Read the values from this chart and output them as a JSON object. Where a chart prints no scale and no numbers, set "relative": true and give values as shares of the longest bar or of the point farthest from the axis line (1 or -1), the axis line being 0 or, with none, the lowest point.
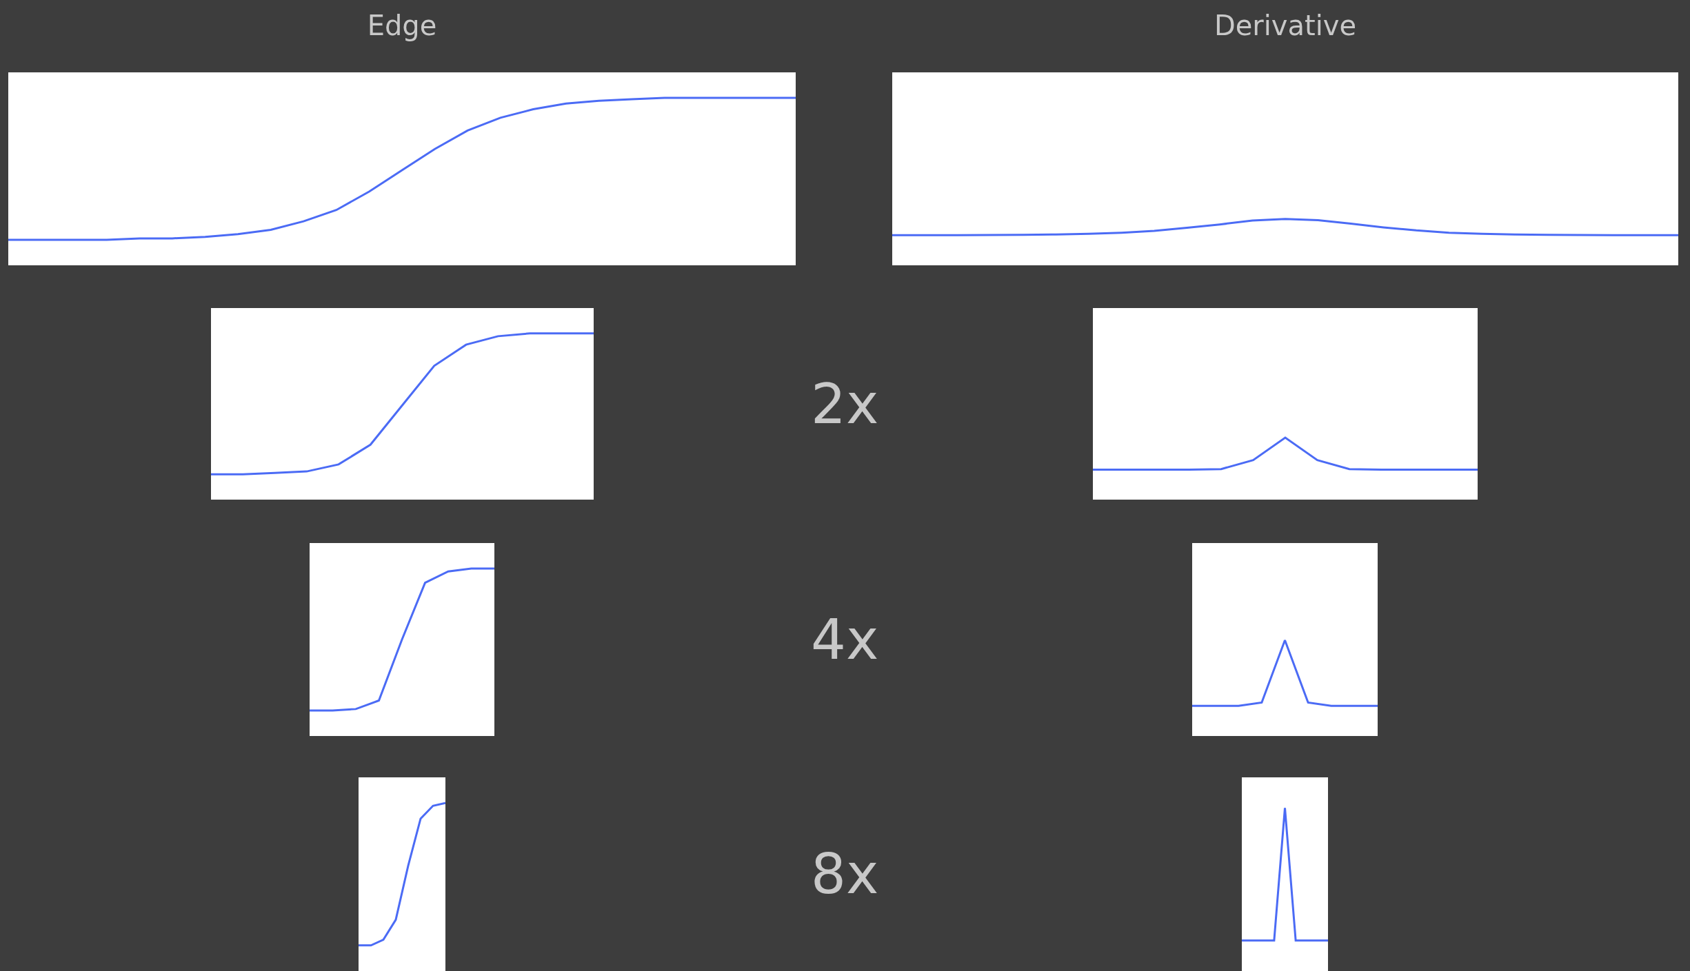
{
  "chart_data": [
    {
      "type": "line",
      "title": "Edge",
      "relative": true,
      "categories": [
        null,
        null,
        null,
        null,
        null,
        null,
        null,
        null,
        null,
        null,
        null,
        null,
        null,
        null,
        null,
        null,
        null,
        null,
        null,
        null,
        null,
        null,
        null,
        null,
        null
      ],
      "series": [
        {
          "color": "#4b6bf5",
          "values": [
            0,
            0,
            0,
            0,
            0.01,
            0.01,
            0.02,
            0.04,
            0.07,
            0.13,
            0.21,
            0.34,
            0.49,
            0.64,
            0.77,
            0.86,
            0.92,
            0.96,
            0.98,
            0.99,
            1,
            1,
            1,
            1,
            1
          ]
        }
      ]
    },
    {
      "type": "line",
      "title": "Derivative",
      "relative": true,
      "categories": [
        null,
        null,
        null,
        null,
        null,
        null,
        null,
        null,
        null,
        null,
        null,
        null,
        null,
        null,
        null,
        null,
        null,
        null,
        null,
        null,
        null,
        null,
        null,
        null,
        null
      ],
      "series": [
        {
          "color": "#4b6bf5",
          "values": [
            0,
            0,
            0,
            0.01,
            0.02,
            0.04,
            0.08,
            0.15,
            0.26,
            0.45,
            0.66,
            0.9,
            1,
            0.92,
            0.71,
            0.48,
            0.29,
            0.15,
            0.08,
            0.04,
            0.02,
            0.01,
            0,
            0,
            0
          ]
        }
      ]
    },
    {
      "type": "line",
      "relative": true,
      "categories": [
        null,
        null,
        null,
        null,
        null,
        null,
        null,
        null,
        null,
        null,
        null,
        null,
        null
      ],
      "series": [
        {
          "color": "#4b6bf5",
          "values": [
            0,
            0,
            0.01,
            0.02,
            0.07,
            0.21,
            0.49,
            0.77,
            0.92,
            0.98,
            1,
            1,
            1
          ]
        }
      ]
    },
    {
      "type": "line",
      "relative": true,
      "annotations": [
        "2x"
      ],
      "categories": [
        null,
        null,
        null,
        null,
        null,
        null,
        null,
        null,
        null,
        null,
        null,
        null,
        null
      ],
      "series": [
        {
          "color": "#4b6bf5",
          "values": [
            0,
            0,
            0,
            0,
            0.02,
            0.3,
            1,
            0.3,
            0.02,
            0,
            0,
            0,
            0
          ]
        }
      ]
    },
    {
      "type": "line",
      "relative": true,
      "categories": [
        null,
        null,
        null,
        null,
        null,
        null,
        null,
        null,
        null
      ],
      "series": [
        {
          "color": "#4b6bf5",
          "values": [
            0,
            0,
            0.01,
            0.07,
            0.5,
            0.9,
            0.98,
            1,
            1
          ]
        }
      ]
    },
    {
      "type": "line",
      "relative": true,
      "annotations": [
        "4x"
      ],
      "categories": [
        null,
        null,
        null,
        null,
        null,
        null,
        null,
        null,
        null
      ],
      "series": [
        {
          "color": "#4b6bf5",
          "values": [
            0,
            0,
            0,
            0.05,
            1,
            0.05,
            0,
            0,
            0
          ]
        }
      ]
    },
    {
      "type": "line",
      "relative": true,
      "categories": [
        null,
        null,
        null,
        null,
        null,
        null,
        null,
        null
      ],
      "series": [
        {
          "color": "#4b6bf5",
          "values": [
            0,
            0,
            0.04,
            0.18,
            0.56,
            0.89,
            0.98,
            1
          ]
        }
      ]
    },
    {
      "type": "line",
      "relative": true,
      "annotations": [
        "8x"
      ],
      "categories": [
        null,
        null,
        null,
        null,
        null,
        null,
        null,
        null,
        null
      ],
      "series": [
        {
          "color": "#4b6bf5",
          "values": [
            0,
            0,
            0,
            0,
            1,
            0,
            0,
            0,
            0
          ]
        }
      ]
    }
  ]
}
